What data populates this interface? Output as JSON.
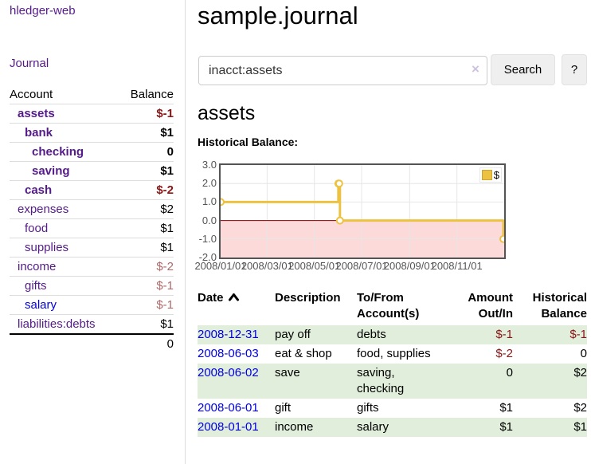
{
  "app": {
    "title": "hledger-web"
  },
  "sidebar": {
    "journal_label": "Journal",
    "table": {
      "account_header": "Account",
      "balance_header": "Balance",
      "rows": [
        {
          "name": "assets",
          "balance": "$-1",
          "depth": 0,
          "bold": true,
          "link": "purple",
          "balance_style": "neg"
        },
        {
          "name": "bank",
          "balance": "$1",
          "depth": 1,
          "bold": true,
          "link": "purple",
          "balance_style": ""
        },
        {
          "name": "checking",
          "balance": "0",
          "depth": 2,
          "bold": true,
          "link": "purple",
          "balance_style": ""
        },
        {
          "name": "saving",
          "balance": "$1",
          "depth": 2,
          "bold": true,
          "link": "purple",
          "balance_style": ""
        },
        {
          "name": "cash",
          "balance": "$-2",
          "depth": 1,
          "bold": true,
          "link": "purple",
          "balance_style": "neg"
        },
        {
          "name": "expenses",
          "balance": "$2",
          "depth": 0,
          "bold": false,
          "link": "purple",
          "balance_style": ""
        },
        {
          "name": "food",
          "balance": "$1",
          "depth": 1,
          "bold": false,
          "link": "purple",
          "balance_style": ""
        },
        {
          "name": "supplies",
          "balance": "$1",
          "depth": 1,
          "bold": false,
          "link": "purple",
          "balance_style": ""
        },
        {
          "name": "income",
          "balance": "$-2",
          "depth": 0,
          "bold": false,
          "link": "purple",
          "balance_style": "neg-muted"
        },
        {
          "name": "gifts",
          "balance": "$-1",
          "depth": 1,
          "bold": false,
          "link": "purple",
          "balance_style": "neg-muted"
        },
        {
          "name": "salary",
          "balance": "$-1",
          "depth": 1,
          "bold": false,
          "link": "blue",
          "balance_style": "neg-muted"
        },
        {
          "name": "liabilities:debts",
          "balance": "$1",
          "depth": 0,
          "bold": false,
          "link": "purple",
          "balance_style": ""
        }
      ],
      "total": "0"
    }
  },
  "header": {
    "title": "sample.journal"
  },
  "search": {
    "value": "inacct:assets",
    "clear_icon": "×",
    "button_label": "Search",
    "help_label": "?"
  },
  "account_page": {
    "heading": "assets",
    "chart_label": "Historical Balance:"
  },
  "chart_data": {
    "type": "line",
    "step": true,
    "title": "Historical Balance:",
    "x_type": "date",
    "x_range": [
      "2008-01-01",
      "2009-01-01"
    ],
    "ylim": [
      -2,
      3
    ],
    "y_ticks": [
      3.0,
      2.0,
      1.0,
      0.0,
      -1.0,
      -2.0
    ],
    "x_ticks": [
      {
        "date": "2008-01-01",
        "label": "2008/01/01"
      },
      {
        "date": "2008-03-01",
        "label": "2008/03/01"
      },
      {
        "date": "2008-05-01",
        "label": "2008/05/01"
      },
      {
        "date": "2008-07-01",
        "label": "2008/07/01"
      },
      {
        "date": "2008-09-01",
        "label": "2008/09/01"
      },
      {
        "date": "2008-11-01",
        "label": "2008/11/01"
      }
    ],
    "series": [
      {
        "name": "$",
        "color": "#edc240",
        "marker_fill": "#ffffff",
        "points": [
          {
            "date": "2008-01-01",
            "value": 1.0
          },
          {
            "date": "2008-06-01",
            "value": 2.0
          },
          {
            "date": "2008-06-02",
            "value": 2.0
          },
          {
            "date": "2008-06-03",
            "value": 0.0
          },
          {
            "date": "2008-12-31",
            "value": -1.0
          }
        ]
      }
    ],
    "legend": {
      "label": "$",
      "position": "top-right"
    },
    "grid": true,
    "negative_region_color": "#fcdada",
    "zero_line_color": "#8b0000",
    "border_color": "#545454",
    "gridline_color": "#e6e6e6",
    "tick_label_color": "#545454"
  },
  "transactions": {
    "headers": {
      "date": "Date",
      "description": "Description",
      "accounts": "To/From\nAccount(s)",
      "amount": "Amount\nOut/In",
      "balance": "Historical\nBalance"
    },
    "sort": "ascending",
    "rows": [
      {
        "date": "2008-12-31",
        "description": "pay off",
        "accounts": "debts",
        "amount": "$-1",
        "balance": "$-1",
        "amount_neg": true,
        "balance_neg": true,
        "highlighted": true
      },
      {
        "date": "2008-06-03",
        "description": "eat & shop",
        "accounts": "food, supplies",
        "amount": "$-2",
        "balance": "0",
        "amount_neg": true,
        "balance_neg": false,
        "highlighted": false
      },
      {
        "date": "2008-06-02",
        "description": "save",
        "accounts": "saving,\nchecking",
        "amount": "0",
        "balance": "$2",
        "amount_neg": false,
        "balance_neg": false,
        "highlighted": true
      },
      {
        "date": "2008-06-01",
        "description": "gift",
        "accounts": "gifts",
        "amount": "$1",
        "balance": "$2",
        "amount_neg": false,
        "balance_neg": false,
        "highlighted": false
      },
      {
        "date": "2008-01-01",
        "description": "income",
        "accounts": "salary",
        "amount": "$1",
        "balance": "$1",
        "amount_neg": false,
        "balance_neg": false,
        "highlighted": true
      }
    ]
  }
}
